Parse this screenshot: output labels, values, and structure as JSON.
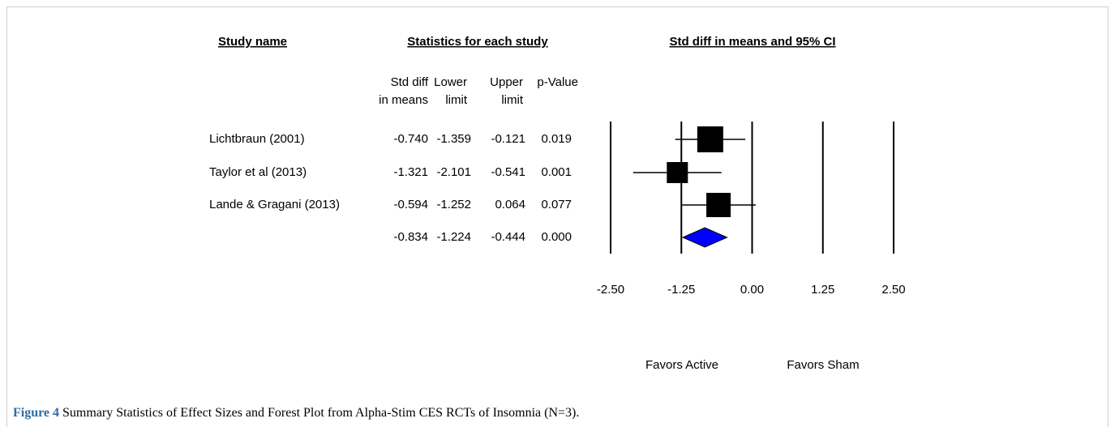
{
  "caption": {
    "label": "Figure 4",
    "text": "Summary Statistics of Effect Sizes and Forest Plot from Alpha-Stim CES RCTs of Insomnia (N=3)."
  },
  "chart_data": {
    "type": "forest",
    "headers": {
      "study": "Study name",
      "stats": "Statistics for each study",
      "plot": "Std diff in means and 95% CI"
    },
    "categories": [
      "Lichtbraun (2001)",
      "Taylor et al (2013)",
      "Lande & Gragani (2013)",
      null
    ],
    "columns": [
      {
        "label": [
          "Std diff",
          "in means"
        ],
        "values": [
          -0.74,
          -1.321,
          -0.594,
          -0.834
        ],
        "value_labels": [
          "-0.740",
          "-1.321",
          "-0.594",
          "-0.834"
        ]
      },
      {
        "label": [
          "Lower",
          "limit"
        ],
        "values": [
          -1.359,
          -2.101,
          -1.252,
          -1.224
        ],
        "value_labels": [
          "-1.359",
          "-2.101",
          "-1.252",
          "-1.224"
        ]
      },
      {
        "label": [
          "Upper",
          "limit"
        ],
        "values": [
          -0.121,
          -0.541,
          0.064,
          -0.444
        ],
        "value_labels": [
          "-0.121",
          "-0.541",
          "0.064",
          "-0.444"
        ]
      },
      {
        "label": [
          "p-Value"
        ],
        "values": [
          0.019,
          0.001,
          0.077,
          0
        ],
        "value_labels": [
          "0.019",
          "0.001",
          "0.077",
          "0.000"
        ]
      }
    ],
    "markers": [
      "square",
      "square",
      "square",
      "diamond"
    ],
    "square_color": "#000000",
    "diamond_color": "#0000ff",
    "xlim": [
      -2.5,
      2.5
    ],
    "xticks": [
      {
        "value": -2.5,
        "label": "-2.50"
      },
      {
        "value": -1.25,
        "label": "-1.25"
      },
      {
        "value": 0,
        "label": "0.00"
      },
      {
        "value": 1.25,
        "label": "1.25"
      },
      {
        "value": 2.5,
        "label": "2.50"
      }
    ],
    "footer": [
      "Favors Active",
      "Favors Sham"
    ]
  }
}
